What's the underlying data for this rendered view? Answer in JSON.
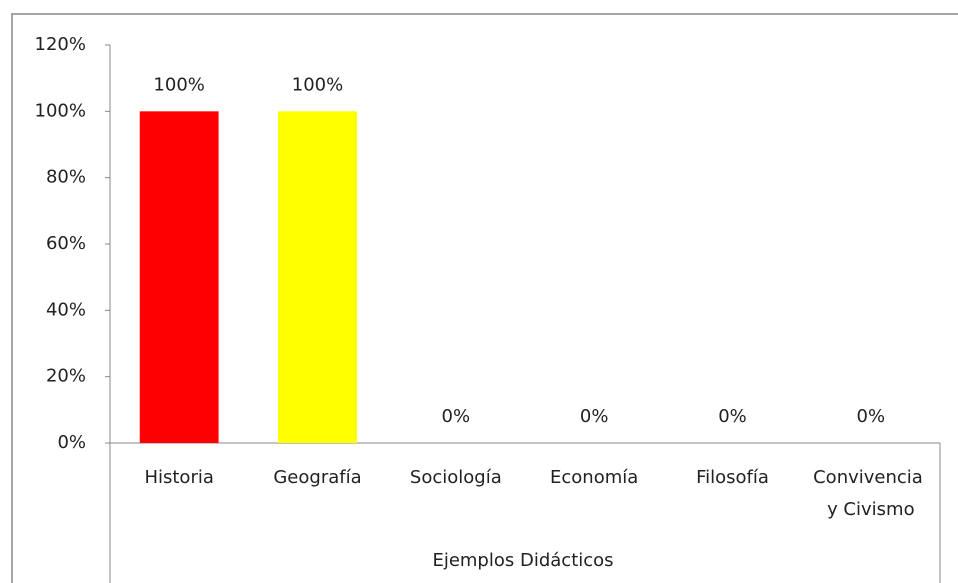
{
  "chart_data": {
    "type": "bar",
    "categories": [
      "Historia",
      "Geografía",
      "Sociología",
      "Economía",
      "Filosofía",
      "Convivencia y Civismo"
    ],
    "values": [
      100,
      100,
      0,
      0,
      0,
      0
    ],
    "value_labels": [
      "100%",
      "100%",
      "0%",
      "0%",
      "0%",
      "0%"
    ],
    "colors": [
      "#ff0000",
      "#ffff00",
      null,
      null,
      null,
      null
    ],
    "xlabel": "Ejemplos Didácticos",
    "ylim": [
      0,
      120
    ],
    "yticks": [
      {
        "value": 0,
        "label": "0%"
      },
      {
        "value": 20,
        "label": "20%"
      },
      {
        "value": 40,
        "label": "40%"
      },
      {
        "value": 60,
        "label": "60%"
      },
      {
        "value": 80,
        "label": "80%"
      },
      {
        "value": 100,
        "label": "100%"
      },
      {
        "value": 120,
        "label": "120%"
      }
    ],
    "grid": false
  }
}
